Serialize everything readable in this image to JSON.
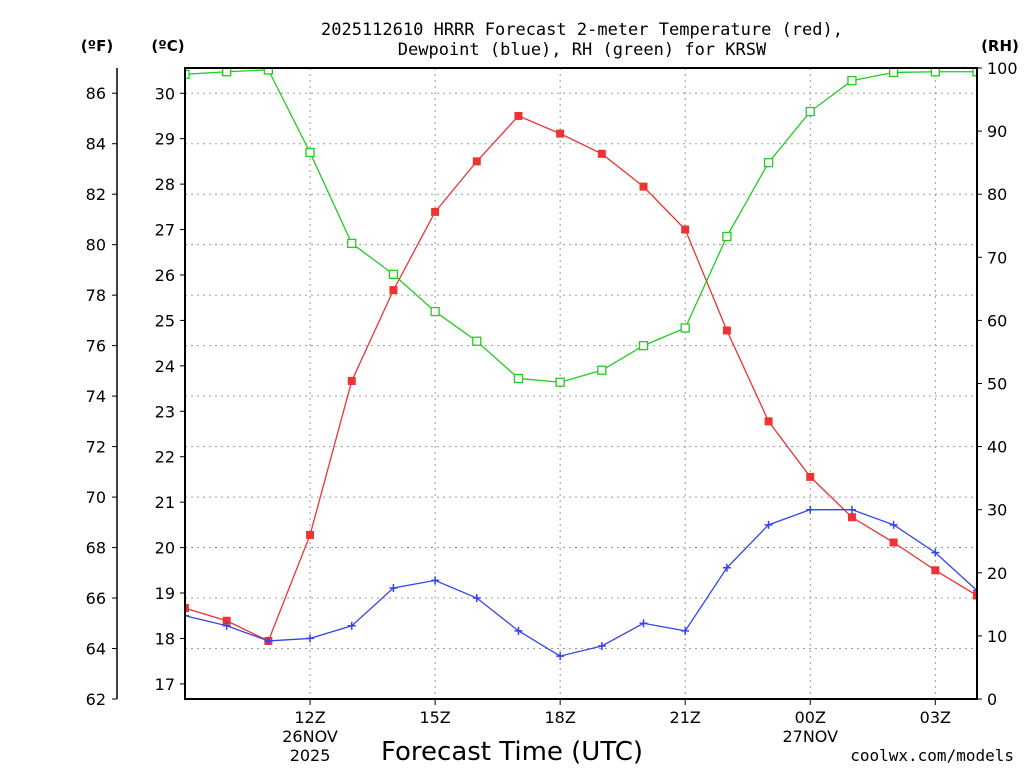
{
  "title_line1": "2025112610 HRRR Forecast 2-meter Temperature (red),",
  "title_line2": "Dewpoint (blue), RH (green) for KRSW",
  "unit_f": "(ºF)",
  "unit_c": "(ºC)",
  "unit_rh": "(RH)",
  "xlabel": "Forecast Time (UTC)",
  "credit": "coolwx.com/models",
  "colors": {
    "temp": "#ee3333",
    "dewpoint": "#3344ee",
    "rh": "#22cc22",
    "credit": "#ee3333",
    "grid": "#999999"
  },
  "chart_data": {
    "type": "line",
    "x_hours": [
      9,
      10,
      11,
      12,
      13,
      14,
      15,
      16,
      17,
      18,
      19,
      20,
      21,
      22,
      23,
      24,
      25,
      26,
      27,
      28
    ],
    "xlim": [
      9,
      28
    ],
    "x_ticks": [
      {
        "hour": 12,
        "label": "12Z",
        "date": "26NOV",
        "year": "2025"
      },
      {
        "hour": 15,
        "label": "15Z"
      },
      {
        "hour": 18,
        "label": "18Z"
      },
      {
        "hour": 21,
        "label": "21Z"
      },
      {
        "hour": 24,
        "label": "00Z",
        "date": "27NOV"
      },
      {
        "hour": 27,
        "label": "03Z"
      }
    ],
    "left_axis_f": {
      "ylim": [
        62,
        87
      ],
      "ticks": [
        62,
        64,
        66,
        68,
        70,
        72,
        74,
        76,
        78,
        80,
        82,
        84,
        86
      ]
    },
    "left_axis_c": {
      "ylim": [
        16.667,
        30.556
      ],
      "ticks": [
        17,
        18,
        19,
        20,
        21,
        22,
        23,
        24,
        25,
        26,
        27,
        28,
        29,
        30
      ]
    },
    "right_axis_rh": {
      "ylim": [
        0,
        100
      ],
      "ticks": [
        0,
        10,
        20,
        30,
        40,
        50,
        60,
        70,
        80,
        90,
        100
      ]
    },
    "series": [
      {
        "name": "Temperature",
        "units": "F",
        "axis": "left_f",
        "color": "red",
        "marker": "filled-square",
        "values": [
          65.6,
          65.1,
          64.3,
          68.5,
          74.6,
          78.2,
          81.3,
          83.3,
          85.1,
          84.4,
          83.6,
          82.3,
          80.6,
          76.6,
          73.0,
          70.8,
          69.2,
          68.2,
          67.1,
          66.1
        ]
      },
      {
        "name": "Dewpoint",
        "units": "F",
        "axis": "left_f",
        "color": "blue",
        "marker": "plus",
        "values": [
          65.3,
          64.9,
          64.3,
          64.4,
          64.9,
          66.4,
          66.7,
          66.0,
          64.7,
          63.7,
          64.1,
          65.0,
          64.7,
          67.2,
          68.9,
          69.5,
          69.5,
          68.9,
          67.8,
          66.3
        ]
      },
      {
        "name": "RH",
        "units": "%",
        "axis": "right_rh",
        "color": "green",
        "marker": "open-square",
        "values": [
          99.0,
          99.4,
          99.7,
          86.6,
          72.2,
          67.3,
          61.4,
          56.7,
          50.8,
          50.2,
          52.1,
          56.0,
          58.8,
          73.3,
          85.0,
          93.1,
          98.0,
          99.3,
          99.4,
          99.4
        ]
      }
    ]
  }
}
